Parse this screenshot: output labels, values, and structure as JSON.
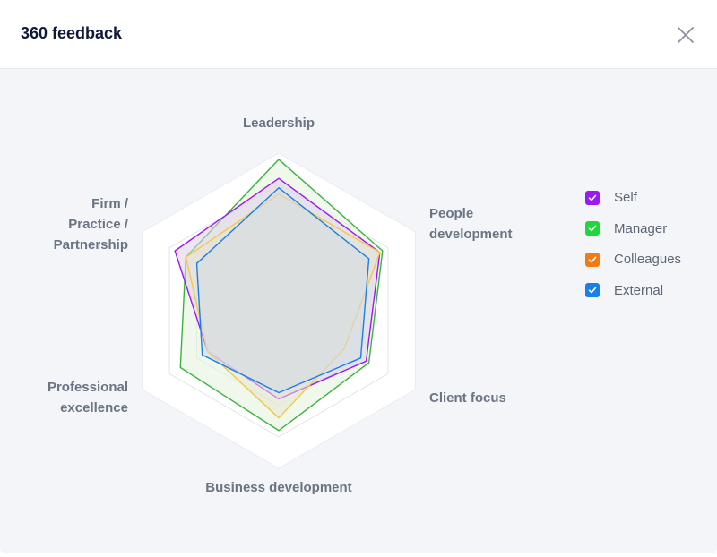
{
  "header": {
    "title": "360 feedback"
  },
  "legend": [
    {
      "label": "Self",
      "color": "#9b19f5",
      "checked": true
    },
    {
      "label": "Manager",
      "color": "#1fd63c",
      "checked": true
    },
    {
      "label": "Colleagues",
      "color": "#f37b16",
      "checked": true
    },
    {
      "label": "External",
      "color": "#1a7fe6",
      "checked": true
    }
  ],
  "chart_data": {
    "type": "radar",
    "axes": [
      {
        "label_lines": [
          "Leadership"
        ]
      },
      {
        "label_lines": [
          "People",
          "development"
        ]
      },
      {
        "label_lines": [
          "Client focus"
        ]
      },
      {
        "label_lines": [
          "Business development"
        ]
      },
      {
        "label_lines": [
          "Professional",
          "excellence"
        ]
      },
      {
        "label_lines": [
          "Firm /",
          "Practice /",
          "Partnership"
        ]
      }
    ],
    "rings": 5,
    "max": 5,
    "series": [
      {
        "name": "Manager",
        "color": "#3ab43f",
        "fill": "#e2f3d8",
        "values": [
          4.8,
          3.8,
          3.3,
          3.8,
          3.6,
          3.4
        ]
      },
      {
        "name": "Self",
        "color": "#9b19f5",
        "fill": "#dcd2e8",
        "values": [
          4.2,
          3.7,
          3.2,
          2.8,
          2.6,
          3.8
        ]
      },
      {
        "name": "Colleagues",
        "color": "#f2c84b",
        "fill": "#e8e4d2",
        "values": [
          3.7,
          3.7,
          2.4,
          3.4,
          2.6,
          3.4
        ]
      },
      {
        "name": "External",
        "color": "#1a7fe6",
        "fill": "#d4dde4",
        "values": [
          3.9,
          3.3,
          3.0,
          2.6,
          2.8,
          3.0
        ]
      }
    ]
  }
}
